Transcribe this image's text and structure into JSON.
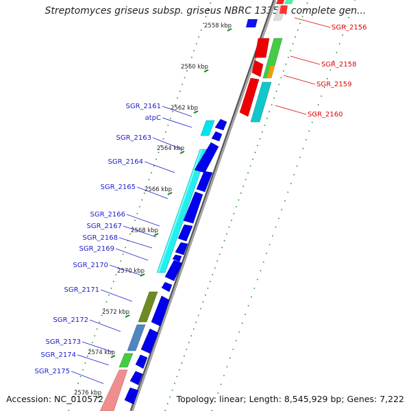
{
  "title": "Streptomyces griseus subsp. griseus NBRC 13350, complete gen...",
  "footer": {
    "accession": "Accession: NC_010572",
    "info": "Topology: linear; Length: 8,545,929 bp; Genes: 7,222"
  },
  "colors": {
    "forward_label": "#1a1acc",
    "reverse_label": "#dd0000",
    "forward_gene": "#0000ee",
    "reverse_gene": "#ee0000",
    "backbone": "#888888",
    "tick": "#118811"
  },
  "ticks": [
    "2558 kbp",
    "2560 kbp",
    "2562 kbp",
    "2564 kbp",
    "2566 kbp",
    "2568 kbp",
    "2570 kbp",
    "2572 kbp",
    "2574 kbp",
    "2576 kbp"
  ],
  "forward_labels": [
    "SGR_2161",
    "atpC",
    "SGR_2163",
    "SGR_2164",
    "SGR_2165",
    "SGR_2166",
    "SGR_2167",
    "SGR_2168",
    "SGR_2169",
    "SGR_2170",
    "SGR_2171",
    "SGR_2172",
    "SGR_2173",
    "SGR_2174",
    "SGR_2175"
  ],
  "reverse_labels": [
    "SGR_2156",
    "SGR_2158",
    "SGR_2159",
    "SGR_2160"
  ]
}
